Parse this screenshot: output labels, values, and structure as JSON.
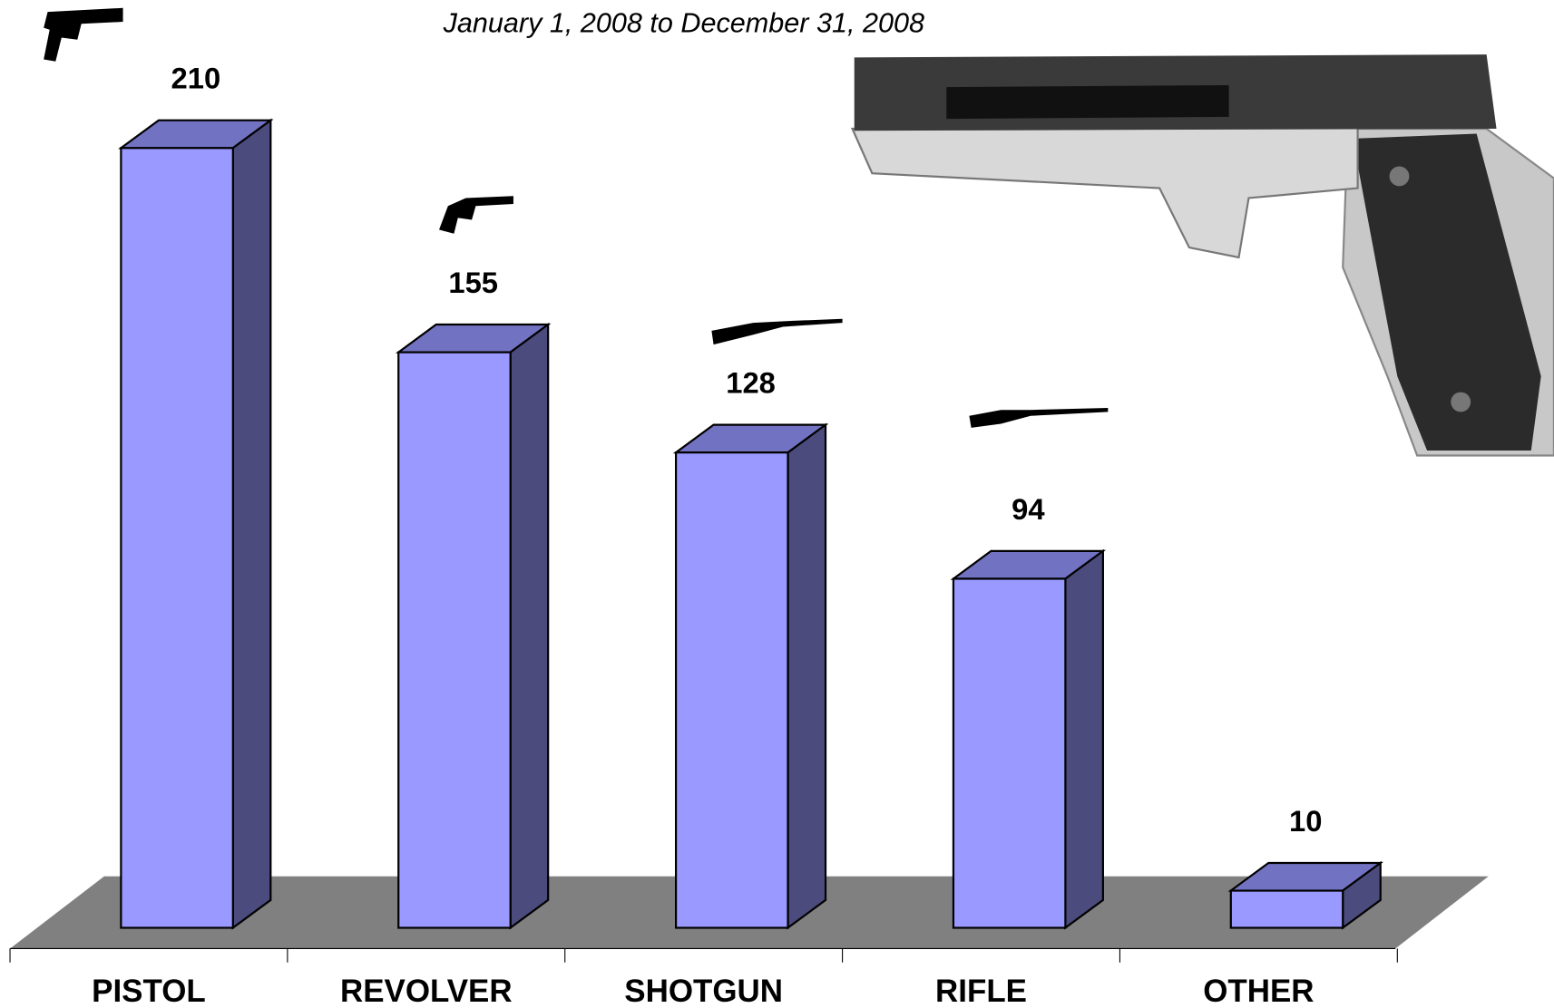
{
  "chart_data": {
    "type": "bar3d",
    "subtitle": "January 1, 2008 to December 31, 2008",
    "categories": [
      "PISTOL",
      "REVOLVER",
      "SHOTGUN",
      "RIFLE",
      "OTHER"
    ],
    "values": [
      210,
      155,
      128,
      94,
      10
    ],
    "color": "#9999ff"
  }
}
